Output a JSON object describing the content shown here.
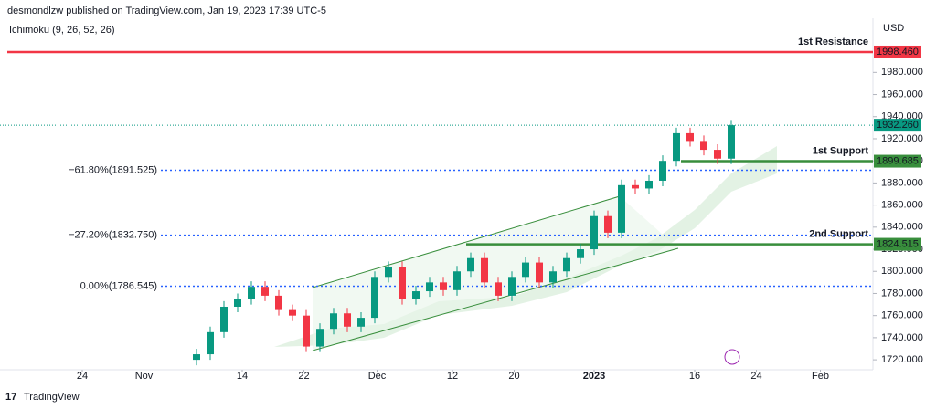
{
  "header": {
    "byline": "desmondlzw published on TradingView.com, Jan 19, 2023 17:39 UTC-5",
    "indicator": "Ichimoku (9, 26, 52, 26)",
    "currency": "USD"
  },
  "footer": {
    "brand": "TradingView"
  },
  "chart_data": {
    "type": "candlestick",
    "up_color": "#089981",
    "down_color": "#f23645",
    "x": [
      43,
      46,
      49,
      52,
      55,
      58,
      61,
      64,
      67,
      70,
      73,
      76,
      79,
      82,
      85,
      88,
      91,
      94,
      97,
      100,
      103,
      106,
      109,
      112,
      115,
      118,
      121,
      124,
      127,
      130,
      133,
      136,
      139,
      142,
      145,
      148,
      151,
      154,
      157,
      160
    ],
    "open": [
      1720,
      1725,
      1745,
      1768,
      1775,
      1786,
      1778,
      1765,
      1760,
      1732,
      1748,
      1762,
      1750,
      1758,
      1795,
      1804,
      1775,
      1782,
      1790,
      1783,
      1800,
      1812,
      1790,
      1778,
      1795,
      1808,
      1790,
      1800,
      1812,
      1820,
      1850,
      1835,
      1878,
      1875,
      1882,
      1900,
      1925,
      1918,
      1910,
      1902
    ],
    "high": [
      1730,
      1750,
      1773,
      1780,
      1791,
      1791,
      1783,
      1770,
      1765,
      1753,
      1767,
      1767,
      1763,
      1800,
      1809,
      1809,
      1787,
      1795,
      1795,
      1805,
      1817,
      1817,
      1795,
      1800,
      1813,
      1813,
      1805,
      1817,
      1825,
      1855,
      1855,
      1883,
      1883,
      1887,
      1905,
      1930,
      1930,
      1923,
      1915,
      1937
    ],
    "low": [
      1715,
      1720,
      1740,
      1763,
      1770,
      1773,
      1760,
      1755,
      1727,
      1727,
      1743,
      1745,
      1745,
      1753,
      1790,
      1770,
      1770,
      1777,
      1778,
      1778,
      1795,
      1785,
      1773,
      1773,
      1790,
      1785,
      1785,
      1795,
      1807,
      1815,
      1830,
      1830,
      1870,
      1870,
      1877,
      1895,
      1913,
      1905,
      1897,
      1897
    ],
    "close": [
      1725,
      1745,
      1768,
      1775,
      1786,
      1778,
      1765,
      1760,
      1732,
      1748,
      1762,
      1750,
      1758,
      1795,
      1804,
      1775,
      1782,
      1790,
      1783,
      1800,
      1812,
      1790,
      1778,
      1795,
      1808,
      1790,
      1800,
      1812,
      1820,
      1850,
      1835,
      1878,
      1875,
      1882,
      1900,
      1925,
      1918,
      1910,
      1902,
      1932.26
    ],
    "xlim": [
      0,
      191
    ],
    "xticks": [
      {
        "value": 18,
        "label": "24"
      },
      {
        "value": 31.5,
        "label": "Nov"
      },
      {
        "value": 53,
        "label": "14"
      },
      {
        "value": 66.5,
        "label": "22"
      },
      {
        "value": 82.5,
        "label": "Dec"
      },
      {
        "value": 99,
        "label": "12"
      },
      {
        "value": 112.5,
        "label": "20"
      },
      {
        "value": 130,
        "label": "2023"
      },
      {
        "value": 152,
        "label": "16"
      },
      {
        "value": 165.5,
        "label": "24"
      },
      {
        "value": 179.5,
        "label": "Feb"
      }
    ],
    "ylim": [
      1711,
      2029
    ],
    "yticks": [
      {
        "value": 1720,
        "label": "1720.000"
      },
      {
        "value": 1740,
        "label": "1740.000"
      },
      {
        "value": 1760,
        "label": "1760.000"
      },
      {
        "value": 1780,
        "label": "1780.000"
      },
      {
        "value": 1800,
        "label": "1800.000"
      },
      {
        "value": 1820,
        "label": "1820.000"
      },
      {
        "value": 1840,
        "label": "1840.000"
      },
      {
        "value": 1860,
        "label": "1860.000"
      },
      {
        "value": 1880,
        "label": "1880.000"
      },
      {
        "value": 1900,
        "label": "1900.000"
      },
      {
        "value": 1920,
        "label": "1920.000"
      },
      {
        "value": 1940,
        "label": "1940.000"
      },
      {
        "value": 1960,
        "label": "1960.000"
      },
      {
        "value": 1980,
        "label": "1980.000"
      }
    ],
    "levels": [
      {
        "name": "1st Resistance",
        "value": 1998.46,
        "label": "1998.460",
        "color": "#f23645"
      },
      {
        "name": "1st Support",
        "value": 1899.685,
        "label": "1899.685",
        "color": "#388e3c"
      },
      {
        "name": "2nd Support",
        "value": 1824.515,
        "label": "1824.515",
        "color": "#388e3c"
      }
    ],
    "fib_levels": [
      {
        "value": 1891.525,
        "label": "−61.80%(1891.525)"
      },
      {
        "value": 1832.75,
        "label": "−27.20%(1832.750)"
      },
      {
        "value": 1786.545,
        "label": "0.00%(1786.545)"
      }
    ],
    "last_price": {
      "value": 1932.26,
      "label": "1932.260",
      "color": "#089981"
    }
  }
}
